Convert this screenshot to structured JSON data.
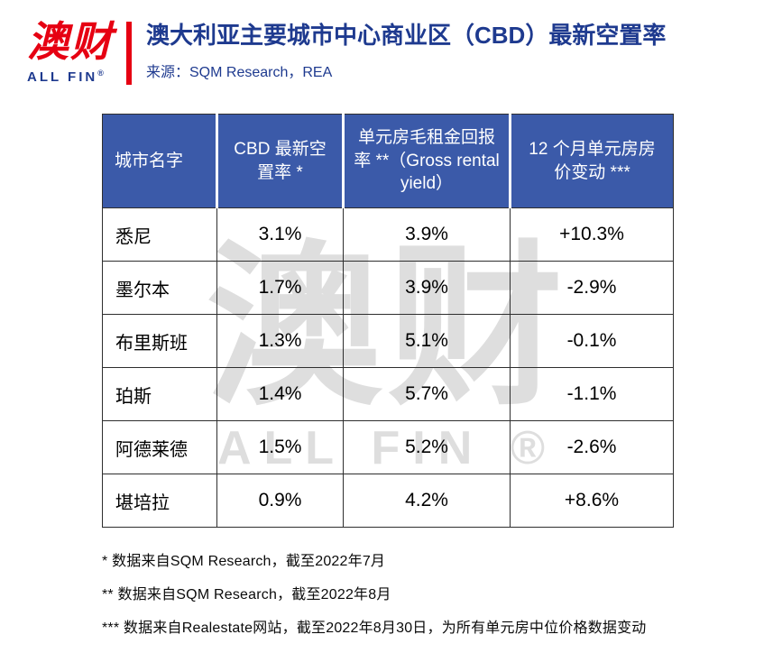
{
  "brand": {
    "logo_text": "澳财",
    "logo_subtext": "ALL FIN",
    "registered": "®"
  },
  "colors": {
    "accent_red": "#e60012",
    "brand_blue": "#1e3a8f",
    "table_header_bg": "#3b5aa9",
    "watermark_gray": "#dedede"
  },
  "header": {
    "title": "澳大利亚主要城市中心商业区（CBD）最新空置率",
    "source": "来源：SQM Research，REA"
  },
  "chart_data": {
    "type": "table",
    "title": "澳大利亚主要城市中心商业区（CBD）最新空置率",
    "source": "SQM Research，REA",
    "columns": [
      "城市名字",
      "CBD 最新空置率 *",
      "单元房毛租金回报率 **（Gross rental yield）",
      "12 个月单元房房价变动 ***"
    ],
    "rows": [
      [
        "悉尼",
        "3.1%",
        "3.9%",
        "+10.3%"
      ],
      [
        "墨尔本",
        "1.7%",
        "3.9%",
        "-2.9%"
      ],
      [
        "布里斯班",
        "1.3%",
        "5.1%",
        "-0.1%"
      ],
      [
        "珀斯",
        "1.4%",
        "5.7%",
        "-1.1%"
      ],
      [
        "阿德莱德",
        "1.5%",
        "5.2%",
        "-2.6%"
      ],
      [
        "堪培拉",
        "0.9%",
        "4.2%",
        "+8.6%"
      ]
    ]
  },
  "watermark": {
    "line1": "澳财",
    "line2": "ALL FIN ®"
  },
  "footnotes": [
    "* 数据来自SQM Research，截至2022年7月",
    "** 数据来自SQM Research，截至2022年8月",
    "*** 数据来自Realestate网站，截至2022年8月30日，为所有单元房中位价格数据变动"
  ]
}
